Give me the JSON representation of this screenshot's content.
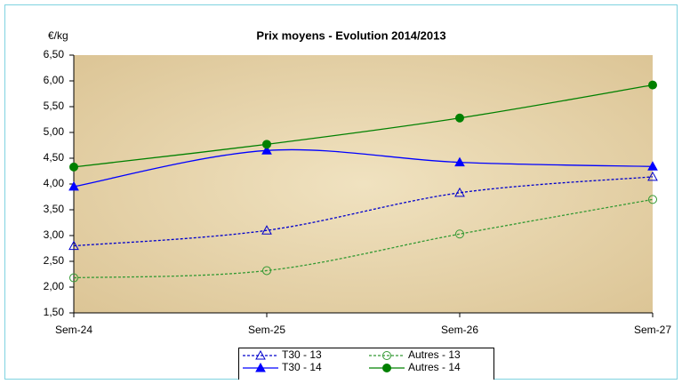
{
  "chart_data": {
    "type": "line",
    "title": "Prix moyens - Evolution 2014/2013",
    "y_label": "€/kg",
    "categories": [
      "Sem-24",
      "Sem-25",
      "Sem-26",
      "Sem-27"
    ],
    "series": [
      {
        "name": "T30 - 13",
        "color": "#0000cc",
        "dash": "dotted",
        "marker": "triangle",
        "filled": false,
        "values": [
          2.8,
          3.1,
          3.83,
          4.14
        ]
      },
      {
        "name": "Autres - 13",
        "color": "#339933",
        "dash": "dotted",
        "marker": "circle",
        "filled": false,
        "values": [
          2.18,
          2.32,
          3.03,
          3.7
        ]
      },
      {
        "name": "T30 - 14",
        "color": "#0000ff",
        "dash": "solid",
        "marker": "triangle",
        "filled": true,
        "values": [
          3.95,
          4.65,
          4.42,
          4.34
        ]
      },
      {
        "name": "Autres - 14",
        "color": "#008000",
        "dash": "solid",
        "marker": "circle",
        "filled": true,
        "values": [
          4.33,
          4.77,
          5.28,
          5.92
        ]
      }
    ],
    "ylim": [
      1.5,
      6.5
    ],
    "yticks": [
      {
        "value": 1.5,
        "label": "1,50"
      },
      {
        "value": 2,
        "label": "2,00"
      },
      {
        "value": 2.5,
        "label": "2,50"
      },
      {
        "value": 3,
        "label": "3,00"
      },
      {
        "value": 3.5,
        "label": "3,50"
      },
      {
        "value": 4,
        "label": "4,00"
      },
      {
        "value": 4.5,
        "label": "4,50"
      },
      {
        "value": 5,
        "label": "5,00"
      },
      {
        "value": 5.5,
        "label": "5,50"
      },
      {
        "value": 6,
        "label": "6,00"
      },
      {
        "value": 6.5,
        "label": "6,50"
      }
    ],
    "grid": false,
    "legend": "bottom"
  }
}
